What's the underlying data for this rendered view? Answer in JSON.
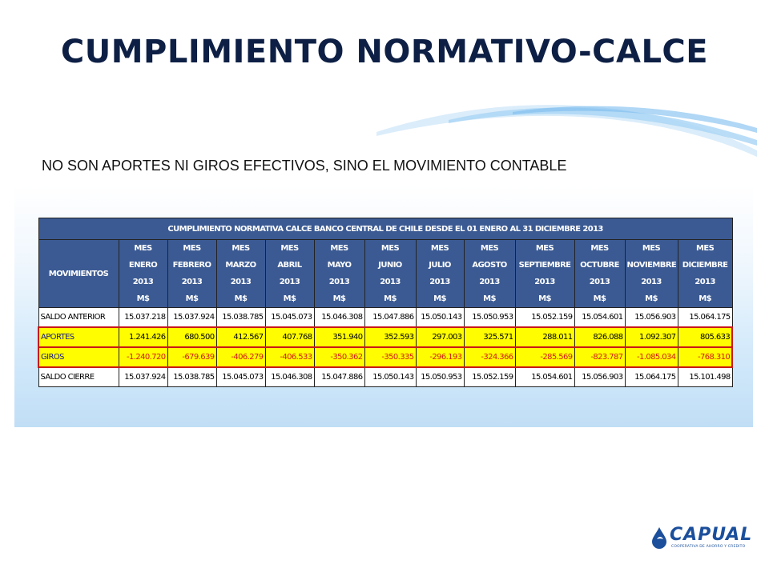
{
  "title": "CUMPLIMIENTO NORMATIVO-CALCE",
  "subtitle": "NO SON APORTES NI GIROS EFECTIVOS, SINO EL MOVIMIENTO CONTABLE",
  "table": {
    "caption": "CUMPLIMIENTO NORMATIVA CALCE BANCO CENTRAL DE CHILE  DESDE EL 01 ENERO AL 31 DICIEMBRE 2013",
    "row_header": "MOVIMIENTOS",
    "columns": [
      {
        "l1": "MES",
        "l2": "ENERO",
        "l3": "2013",
        "l4": "M$"
      },
      {
        "l1": "MES",
        "l2": "FEBRERO",
        "l3": "2013",
        "l4": "M$"
      },
      {
        "l1": "MES",
        "l2": "MARZO",
        "l3": "2013",
        "l4": "M$"
      },
      {
        "l1": "MES",
        "l2": "ABRIL",
        "l3": "2013",
        "l4": "M$"
      },
      {
        "l1": "MES",
        "l2": "MAYO",
        "l3": "2013",
        "l4": "M$"
      },
      {
        "l1": "MES",
        "l2": "JUNIO",
        "l3": "2013",
        "l4": "M$"
      },
      {
        "l1": "MES",
        "l2": "JULIO",
        "l3": "2013",
        "l4": "M$"
      },
      {
        "l1": "MES",
        "l2": "AGOSTO",
        "l3": "2013",
        "l4": "M$"
      },
      {
        "l1": "MES",
        "l2": "SEPTIEMBRE",
        "l3": "2013",
        "l4": "M$"
      },
      {
        "l1": "MES",
        "l2": "OCTUBRE",
        "l3": "2013",
        "l4": "M$"
      },
      {
        "l1": "MES",
        "l2": "NOVIEMBRE",
        "l3": "2013",
        "l4": "M$"
      },
      {
        "l1": "MES",
        "l2": "DICIEMBRE",
        "l3": "2013",
        "l4": "M$"
      }
    ],
    "rows": [
      {
        "label": "SALDO ANTERIOR",
        "style": "plain",
        "values": [
          "15.037.218",
          "15.037.924",
          "15.038.785",
          "15.045.073",
          "15.046.308",
          "15.047.886",
          "15.050.143",
          "15.050.953",
          "15.052.159",
          "15.054.601",
          "15.056.903",
          "15.064.175"
        ]
      },
      {
        "label": "APORTES",
        "style": "aportes",
        "values": [
          "1.241.426",
          "680.500",
          "412.567",
          "407.768",
          "351.940",
          "352.593",
          "297.003",
          "325.571",
          "288.011",
          "826.088",
          "1.092.307",
          "805.633"
        ]
      },
      {
        "label": "GIROS",
        "style": "giros",
        "values": [
          "-1.240.720",
          "-679.639",
          "-406.279",
          "-406.533",
          "-350.362",
          "-350.335",
          "-296.193",
          "-324.366",
          "-285.569",
          "-823.787",
          "-1.085.034",
          "-768.310"
        ]
      },
      {
        "label": "SALDO CIERRE",
        "style": "plain",
        "values": [
          "15.037.924",
          "15.038.785",
          "15.045.073",
          "15.046.308",
          "15.047.886",
          "15.050.143",
          "15.050.953",
          "15.052.159",
          "15.054.601",
          "15.056.903",
          "15.064.175",
          "15.101.498"
        ]
      }
    ]
  },
  "logo": {
    "name": "CAPUAL",
    "tagline": "COOPERATIVA DE AHORRO Y CREDITO"
  },
  "colors": {
    "title": "#0d1f44",
    "header_fill": "#3b5a93",
    "highlight_fill": "#fffd00",
    "negative_text": "#d41818",
    "brand": "#1b4f9c"
  }
}
